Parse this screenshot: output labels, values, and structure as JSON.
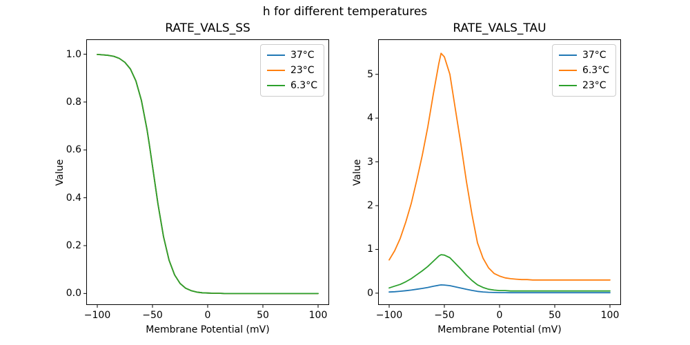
{
  "figure": {
    "title": "h for different temperatures",
    "background": "#ffffff"
  },
  "palette": {
    "blue": "#1f77b4",
    "orange": "#ff7f0e",
    "green": "#2ca02c"
  },
  "chart_data": [
    {
      "type": "line",
      "title": "RATE_VALS_SS",
      "xlabel": "Membrane Potential (mV)",
      "ylabel": "Value",
      "xlim": [
        -110,
        110
      ],
      "ylim": [
        -0.048,
        1.062
      ],
      "xticks": [
        -100,
        -50,
        0,
        50,
        100
      ],
      "xtick_labels": [
        "−100",
        "−50",
        "0",
        "50",
        "100"
      ],
      "yticks": [
        0,
        0.2,
        0.4,
        0.6,
        0.8,
        1.0
      ],
      "ytick_labels": [
        "0.0",
        "0.2",
        "0.4",
        "0.6",
        "0.8",
        "1.0"
      ],
      "grid": false,
      "legend_position": "upper right",
      "x": [
        -100,
        -95,
        -90,
        -85,
        -80,
        -75,
        -70,
        -65,
        -60,
        -55,
        -53,
        -50,
        -45,
        -40,
        -35,
        -30,
        -25,
        -20,
        -15,
        -10,
        -5,
        0,
        5,
        10,
        15,
        20,
        25,
        30,
        35,
        40,
        45,
        50,
        55,
        60,
        65,
        70,
        75,
        80,
        85,
        90,
        95,
        100
      ],
      "series": [
        {
          "name": "37°C",
          "color": "#1f77b4",
          "values": [
            0.999,
            0.997,
            0.995,
            0.991,
            0.982,
            0.966,
            0.938,
            0.888,
            0.806,
            0.686,
            0.627,
            0.532,
            0.373,
            0.237,
            0.139,
            0.078,
            0.042,
            0.022,
            0.012,
            0.006,
            0.003,
            0.002,
            0.001,
            0.001,
            0,
            0,
            0,
            0,
            0,
            0,
            0,
            0,
            0,
            0,
            0,
            0,
            0,
            0,
            0,
            0,
            0,
            0
          ]
        },
        {
          "name": "23°C",
          "color": "#ff7f0e",
          "values": [
            0.999,
            0.997,
            0.995,
            0.991,
            0.982,
            0.966,
            0.938,
            0.888,
            0.806,
            0.686,
            0.627,
            0.532,
            0.373,
            0.237,
            0.139,
            0.078,
            0.042,
            0.022,
            0.012,
            0.006,
            0.003,
            0.002,
            0.001,
            0.001,
            0,
            0,
            0,
            0,
            0,
            0,
            0,
            0,
            0,
            0,
            0,
            0,
            0,
            0,
            0,
            0,
            0,
            0
          ]
        },
        {
          "name": "6.3°C",
          "color": "#2ca02c",
          "values": [
            0.999,
            0.997,
            0.995,
            0.991,
            0.982,
            0.966,
            0.938,
            0.888,
            0.806,
            0.686,
            0.627,
            0.532,
            0.373,
            0.237,
            0.139,
            0.078,
            0.042,
            0.022,
            0.012,
            0.006,
            0.003,
            0.002,
            0.001,
            0.001,
            0,
            0,
            0,
            0,
            0,
            0,
            0,
            0,
            0,
            0,
            0,
            0,
            0,
            0,
            0,
            0,
            0,
            0
          ]
        }
      ]
    },
    {
      "type": "line",
      "title": "RATE_VALS_TAU",
      "xlabel": "Membrane Potential (mV)",
      "ylabel": "Value",
      "xlim": [
        -110,
        110
      ],
      "ylim": [
        -0.27,
        5.8
      ],
      "xticks": [
        -100,
        -50,
        0,
        50,
        100
      ],
      "xtick_labels": [
        "−100",
        "−50",
        "0",
        "50",
        "100"
      ],
      "yticks": [
        0,
        1,
        2,
        3,
        4,
        5
      ],
      "ytick_labels": [
        "0",
        "1",
        "2",
        "3",
        "4",
        "5"
      ],
      "grid": false,
      "legend_position": "upper right",
      "x": [
        -100,
        -95,
        -90,
        -85,
        -80,
        -75,
        -70,
        -65,
        -60,
        -55,
        -53,
        -50,
        -45,
        -40,
        -35,
        -30,
        -25,
        -20,
        -15,
        -10,
        -5,
        0,
        5,
        10,
        15,
        20,
        25,
        30,
        35,
        40,
        45,
        50,
        55,
        60,
        65,
        70,
        75,
        80,
        85,
        90,
        95,
        100
      ],
      "series": [
        {
          "name": "37°C",
          "color": "#1f77b4",
          "values": [
            0.026,
            0.033,
            0.043,
            0.056,
            0.071,
            0.089,
            0.109,
            0.131,
            0.157,
            0.181,
            0.189,
            0.186,
            0.172,
            0.145,
            0.117,
            0.088,
            0.062,
            0.04,
            0.028,
            0.02,
            0.016,
            0.013,
            0.012,
            0.011,
            0.011,
            0.011,
            0.011,
            0.01,
            0.01,
            0.01,
            0.01,
            0.01,
            0.01,
            0.01,
            0.01,
            0.01,
            0.01,
            0.01,
            0.01,
            0.01,
            0.01,
            0.01
          ]
        },
        {
          "name": "6.3°C",
          "color": "#ff7f0e",
          "values": [
            0.76,
            0.97,
            1.25,
            1.62,
            2.05,
            2.58,
            3.15,
            3.8,
            4.55,
            5.25,
            5.48,
            5.4,
            5.0,
            4.2,
            3.4,
            2.55,
            1.8,
            1.15,
            0.8,
            0.58,
            0.45,
            0.39,
            0.35,
            0.33,
            0.32,
            0.31,
            0.31,
            0.3,
            0.3,
            0.3,
            0.3,
            0.3,
            0.3,
            0.3,
            0.3,
            0.3,
            0.3,
            0.3,
            0.3,
            0.3,
            0.3,
            0.3
          ]
        },
        {
          "name": "23°C",
          "color": "#2ca02c",
          "values": [
            0.12,
            0.16,
            0.2,
            0.26,
            0.33,
            0.42,
            0.51,
            0.61,
            0.73,
            0.85,
            0.88,
            0.87,
            0.81,
            0.68,
            0.55,
            0.41,
            0.29,
            0.19,
            0.13,
            0.09,
            0.07,
            0.06,
            0.06,
            0.05,
            0.05,
            0.05,
            0.05,
            0.05,
            0.05,
            0.05,
            0.05,
            0.05,
            0.05,
            0.05,
            0.05,
            0.05,
            0.05,
            0.05,
            0.05,
            0.05,
            0.05,
            0.05
          ]
        }
      ]
    }
  ]
}
